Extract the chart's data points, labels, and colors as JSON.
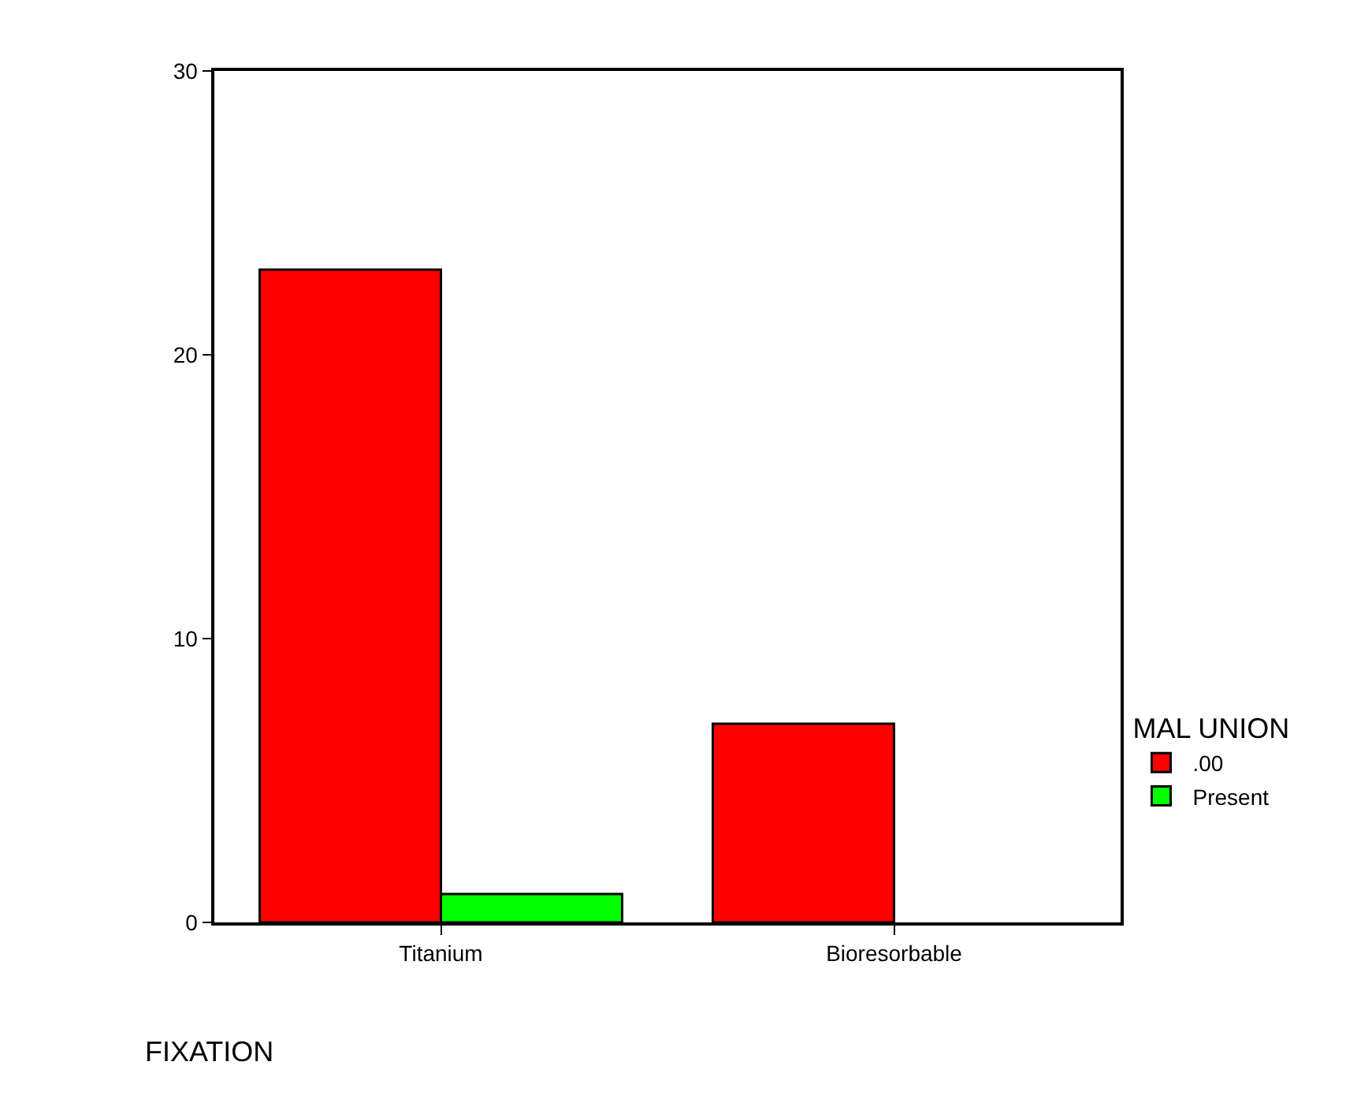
{
  "chart_data": {
    "type": "bar",
    "xlabel": "FIXATION",
    "legend_title": "MAL UNION",
    "categories": [
      "Titanium",
      "Bioresorbable"
    ],
    "series": [
      {
        "name": ".00",
        "color": "#ff0000",
        "values": [
          23,
          7
        ]
      },
      {
        "name": "Present",
        "color": "#00ff00",
        "values": [
          1,
          null
        ]
      }
    ],
    "ylim": [
      0,
      30
    ],
    "yticks": [
      0,
      10,
      20,
      30
    ],
    "legend": "right"
  }
}
